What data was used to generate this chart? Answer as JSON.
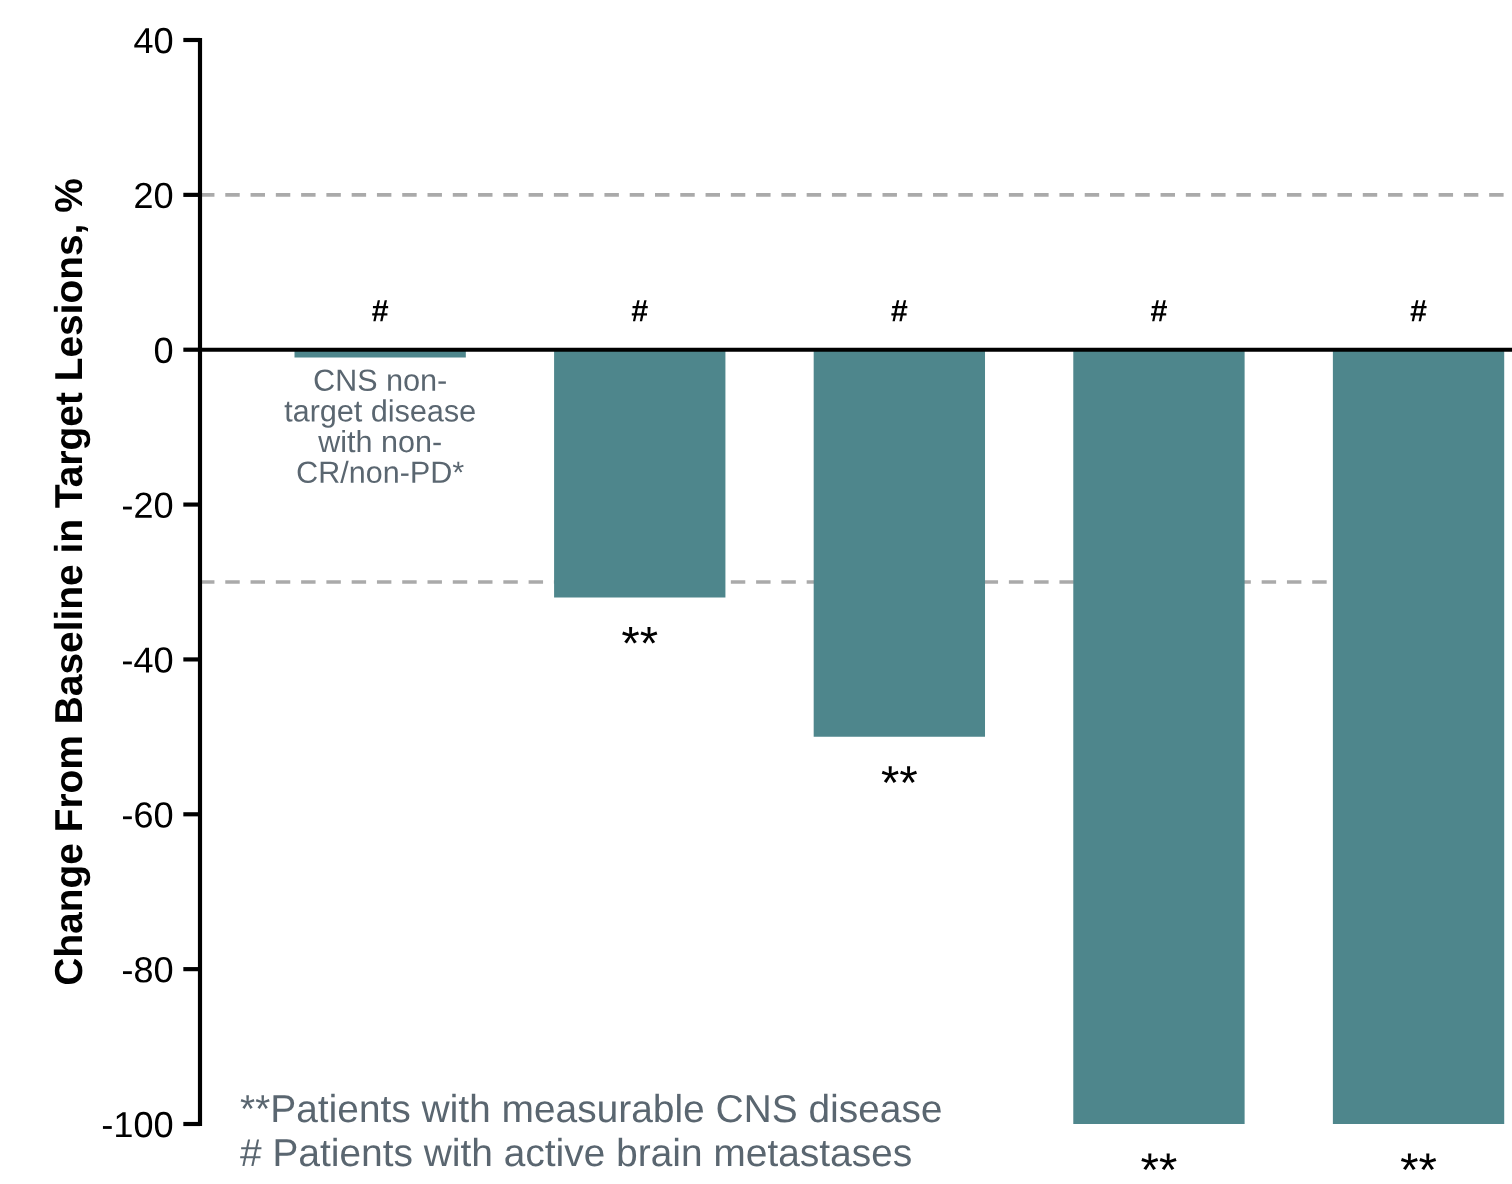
{
  "chart_data": {
    "type": "bar",
    "ylabel": "Change From Baseline in Target Lesions, %",
    "categories": [
      null,
      null,
      null,
      null,
      null
    ],
    "series": [
      {
        "color": "#4e868c",
        "values": [
          -1,
          -32,
          -50,
          -100,
          -100
        ]
      }
    ],
    "ylim": [
      -100,
      40
    ],
    "yticks": [
      -100,
      -80,
      -60,
      -40,
      -20,
      0,
      20,
      40
    ],
    "grid": false,
    "legend": false,
    "ref_lines": [
      {
        "axis": "y",
        "value": 20,
        "color": "#aaaaaa",
        "line_style": "dashed"
      },
      {
        "axis": "y",
        "value": -30,
        "color": "#aaaaaa",
        "line_style": "dashed"
      }
    ],
    "annotations": [
      "#",
      "#",
      "#",
      "#",
      "#",
      "CNS non-\ntarget disease\nwith non-\nCR/non-PD*",
      "**",
      "**",
      "**",
      "**",
      "**Patients with measurable CNS disease",
      "# Patients with active brain metastases"
    ]
  }
}
